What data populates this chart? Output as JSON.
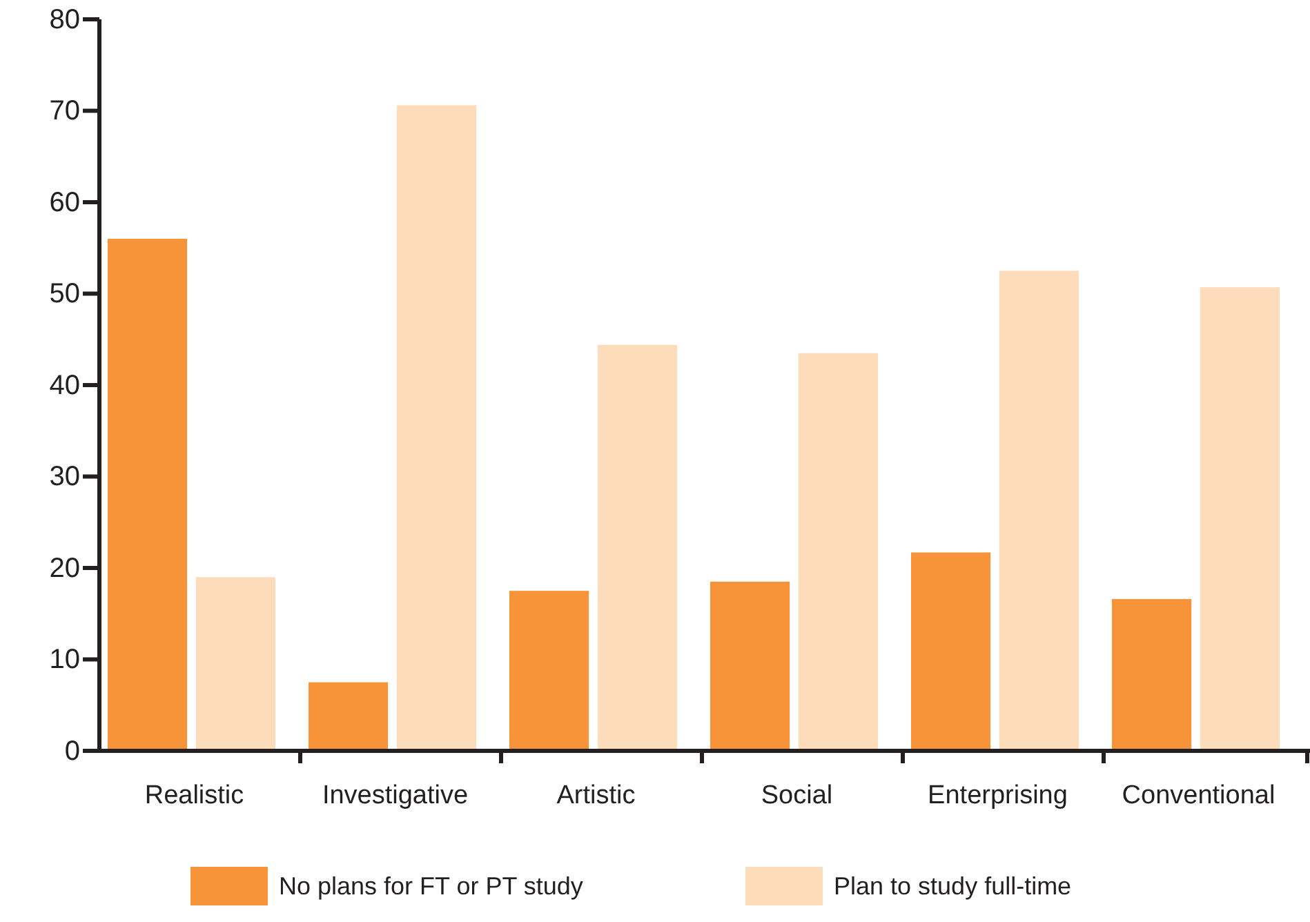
{
  "chart_data": {
    "type": "bar",
    "categories": [
      "Realistic",
      "Investigative",
      "Artistic",
      "Social",
      "Enterprising",
      "Conventional"
    ],
    "series": [
      {
        "name": "No plans for FT or PT study",
        "color": "#f7943a",
        "values": [
          56,
          7.5,
          17.5,
          18.5,
          21.7,
          16.6
        ]
      },
      {
        "name": "Plan to study full-time",
        "color": "#fddcbc",
        "values": [
          19,
          70.6,
          44.4,
          43.5,
          52.5,
          50.7
        ]
      }
    ],
    "ylim": [
      0,
      80
    ],
    "yticks": [
      0,
      10,
      20,
      30,
      40,
      50,
      60,
      70,
      80
    ],
    "grid": false,
    "legend": "bottom"
  }
}
